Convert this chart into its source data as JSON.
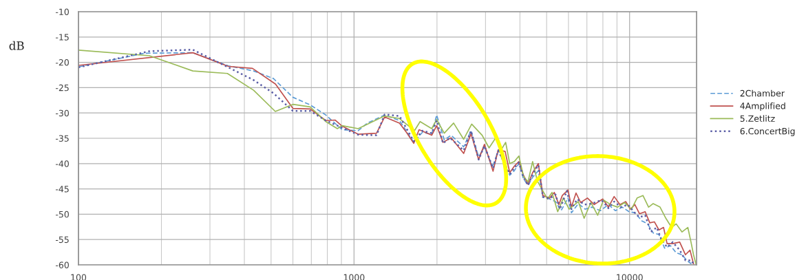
{
  "chart_data": {
    "type": "line",
    "ylabel": "dB",
    "log": "x",
    "grid": true,
    "legend": "right",
    "xlim": [
      100,
      17500
    ],
    "xticks": [
      100,
      1000,
      10000
    ],
    "ylim": [
      -60,
      -10
    ],
    "yticks": [
      -60,
      -55,
      -50,
      -45,
      -40,
      -35,
      -30,
      -25,
      -20,
      -15,
      -10
    ],
    "series": [
      {
        "name": "2Chamber",
        "color": "#5b9bd5",
        "line_style": "dashed",
        "x": [
          100,
          174,
          260,
          350,
          432,
          510,
          600,
          693,
          790,
          905,
          1035,
          1118,
          1291,
          1462,
          1647,
          1771,
          1914,
          1995,
          2125,
          2251,
          2500,
          2658,
          2833,
          2973,
          3185,
          3336,
          3673,
          3817,
          3965,
          4120,
          4280,
          4447,
          4665,
          4847,
          5130,
          5388,
          5640,
          5978,
          6152,
          6515,
          6900,
          7300,
          7840,
          8381,
          8880,
          9400,
          9960,
          10452,
          11070,
          11620,
          12180,
          12780,
          13400,
          14070,
          14760,
          15500,
          16110,
          16750
        ],
        "values": [
          -20.9,
          -18.2,
          -18.1,
          -20.7,
          -21.7,
          -23.2,
          -26.9,
          -28.4,
          -30.4,
          -33.3,
          -33.5,
          -32.0,
          -30.4,
          -31.5,
          -35.8,
          -33.8,
          -34.2,
          -30.4,
          -35.3,
          -34.4,
          -36.7,
          -33.5,
          -38.7,
          -36.7,
          -40.7,
          -37.4,
          -42.3,
          -41.4,
          -40.0,
          -43.0,
          -44.3,
          -42.7,
          -41.4,
          -46.6,
          -47.0,
          -47.5,
          -49.3,
          -46.8,
          -49.7,
          -47.9,
          -49.0,
          -48.6,
          -49.3,
          -48.1,
          -49.3,
          -48.6,
          -49.5,
          -49.7,
          -51.3,
          -51.9,
          -53.7,
          -54.0,
          -56.7,
          -56.2,
          -57.6,
          -58.0,
          -59.1,
          -59.8
        ]
      },
      {
        "name": "4Amplified",
        "color": "#c0504d",
        "line_style": "solid",
        "x": [
          100,
          260,
          350,
          428,
          519,
          600,
          693,
          790,
          855,
          905,
          1035,
          1207,
          1291,
          1462,
          1549,
          1647,
          1722,
          1914,
          1995,
          2104,
          2251,
          2500,
          2658,
          2833,
          2973,
          3195,
          3336,
          3535,
          3673,
          3817,
          3965,
          4120,
          4280,
          4447,
          4665,
          4847,
          5130,
          5330,
          5538,
          5700,
          5978,
          6152,
          6392,
          6641,
          7030,
          7441,
          7991,
          8381,
          8790,
          9225,
          9680,
          10058,
          10452,
          10860,
          11390,
          11837,
          12300,
          12780,
          13280,
          13680,
          14340,
          15200,
          15950,
          16570,
          17060
        ],
        "values": [
          -20.6,
          -18.1,
          -20.8,
          -21.2,
          -24.3,
          -29.1,
          -29.2,
          -31.5,
          -31.4,
          -32.6,
          -34.2,
          -34.0,
          -30.8,
          -32.0,
          -33.8,
          -36.0,
          -33.3,
          -34.4,
          -32.5,
          -35.8,
          -34.9,
          -38.0,
          -34.1,
          -39.2,
          -36.2,
          -41.5,
          -37.3,
          -37.6,
          -41.8,
          -40.5,
          -39.6,
          -42.3,
          -44.1,
          -41.8,
          -40.0,
          -46.3,
          -46.8,
          -45.7,
          -48.1,
          -46.3,
          -45.2,
          -48.6,
          -45.8,
          -47.7,
          -46.8,
          -48.1,
          -47.0,
          -48.6,
          -46.5,
          -48.1,
          -47.5,
          -49.0,
          -48.1,
          -49.9,
          -49.5,
          -51.7,
          -51.5,
          -53.1,
          -52.6,
          -55.8,
          -55.8,
          -55.5,
          -58.0,
          -57.1,
          -59.8
        ]
      },
      {
        "name": "5.Zetlitz",
        "color": "#9bbb59",
        "line_style": "solid",
        "x": [
          100,
          181,
          260,
          347,
          432,
          518,
          600,
          693,
          790,
          870,
          905,
          1035,
          1291,
          1462,
          1657,
          1737,
          1914,
          1995,
          2125,
          2298,
          2500,
          2673,
          2917,
          3091,
          3287,
          3435,
          3550,
          3673,
          3817,
          3965,
          4120,
          4280,
          4447,
          4625,
          4847,
          5035,
          5230,
          5485,
          5750,
          6037,
          6515,
          6840,
          7236,
          7660,
          8040,
          8540,
          9050,
          9587,
          10155,
          10650,
          11180,
          11720,
          12180,
          12900,
          13540,
          14200,
          14760,
          15500,
          16270,
          16750,
          17060,
          17400
        ],
        "values": [
          -17.6,
          -18.7,
          -21.7,
          -22.2,
          -25.5,
          -29.7,
          -28.3,
          -28.8,
          -31.7,
          -33.1,
          -32.5,
          -33.1,
          -30.6,
          -31.1,
          -33.5,
          -31.7,
          -33.1,
          -31.3,
          -34.0,
          -32.0,
          -35.2,
          -32.2,
          -34.4,
          -36.9,
          -34.7,
          -37.1,
          -35.8,
          -40.0,
          -39.6,
          -38.5,
          -42.5,
          -43.6,
          -39.6,
          -43.4,
          -45.4,
          -47.0,
          -45.7,
          -49.5,
          -46.8,
          -49.0,
          -47.5,
          -50.8,
          -47.7,
          -50.2,
          -47.2,
          -48.1,
          -48.6,
          -47.7,
          -49.0,
          -46.8,
          -46.3,
          -48.6,
          -47.9,
          -48.6,
          -50.8,
          -52.6,
          -51.9,
          -53.5,
          -52.6,
          -55.8,
          -58.0,
          -59.8
        ]
      },
      {
        "name": "6.ConcertBig",
        "color": "#5b5ea6",
        "line_style": "dotted",
        "x": [
          100,
          181,
          260,
          350,
          432,
          510,
          600,
          693,
          790,
          905,
          1035,
          1207,
          1291,
          1462,
          1647,
          1771,
          1914,
          1995,
          2104,
          2229,
          2500,
          2658,
          2833,
          2973,
          3195,
          3336,
          3673,
          3817,
          3965,
          4120,
          4280,
          4447,
          4665,
          4847,
          5130,
          5388,
          5586,
          5920,
          6152,
          6455,
          6840,
          7300,
          7910,
          8381,
          8790,
          9315,
          9867,
          10350,
          10860,
          11390,
          11950,
          12540,
          13030,
          13680,
          14340,
          15200,
          15950,
          16750,
          17060
        ],
        "values": [
          -21.0,
          -17.8,
          -17.5,
          -21.0,
          -23.5,
          -26.1,
          -29.6,
          -29.6,
          -31.5,
          -32.9,
          -34.3,
          -34.4,
          -30.3,
          -30.6,
          -35.6,
          -33.5,
          -34.0,
          -31.5,
          -36.0,
          -34.9,
          -37.4,
          -33.5,
          -39.2,
          -36.5,
          -40.9,
          -37.4,
          -42.1,
          -40.9,
          -39.8,
          -42.7,
          -44.3,
          -42.1,
          -40.3,
          -46.6,
          -46.9,
          -46.1,
          -49.0,
          -45.4,
          -49.0,
          -47.0,
          -48.1,
          -47.9,
          -47.2,
          -48.8,
          -47.5,
          -48.6,
          -48.1,
          -49.5,
          -50.6,
          -50.2,
          -53.5,
          -52.6,
          -54.9,
          -56.5,
          -55.5,
          -57.1,
          -59.1,
          -59.1,
          -59.8
        ]
      }
    ]
  }
}
